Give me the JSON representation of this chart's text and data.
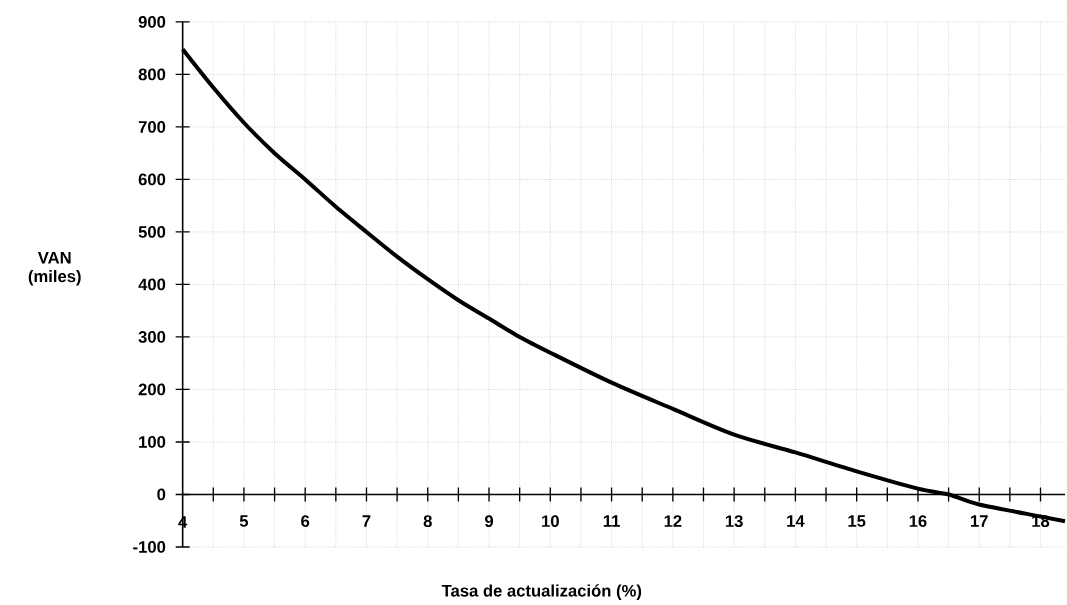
{
  "chart_data": {
    "type": "line",
    "xlabel": "Tasa de actualización (%)",
    "ylabel": "VAN (miles)",
    "x": [
      4,
      4.5,
      5,
      5.5,
      6,
      6.5,
      7,
      7.5,
      8,
      8.5,
      9,
      9.5,
      10,
      11,
      12,
      13,
      14,
      15,
      16,
      16.5,
      17,
      18,
      18.4
    ],
    "series": [
      {
        "color": "#000000",
        "values": [
          848,
          775,
          708,
          650,
          600,
          548,
          500,
          453,
          410,
          370,
          335,
          300,
          270,
          213,
          163,
          114,
          80,
          44,
          11,
          0,
          -19,
          -42,
          -51
        ]
      }
    ],
    "xlim": [
      4,
      18.4
    ],
    "ylim": [
      -100,
      900
    ],
    "xticks": [
      4,
      {
        "value": 4.5,
        "label": null
      },
      5,
      {
        "value": 5.5,
        "label": null
      },
      6,
      {
        "value": 6.5,
        "label": null
      },
      7,
      {
        "value": 7.5,
        "label": null
      },
      8,
      {
        "value": 8.5,
        "label": null
      },
      9,
      {
        "value": 9.5,
        "label": null
      },
      10,
      {
        "value": 10.5,
        "label": null
      },
      11,
      {
        "value": 11.5,
        "label": null
      },
      12,
      {
        "value": 12.5,
        "label": null
      },
      13,
      {
        "value": 13.5,
        "label": null
      },
      14,
      {
        "value": 14.5,
        "label": null
      },
      15,
      {
        "value": 15.5,
        "label": null
      },
      16,
      {
        "value": 16.5,
        "label": null
      },
      17,
      {
        "value": 17.5,
        "label": null
      },
      18
    ],
    "yticks": [
      -100,
      0,
      100,
      200,
      300,
      400,
      500,
      600,
      700,
      800,
      900
    ],
    "grid": true,
    "marker": "none",
    "line_style": "solid"
  }
}
